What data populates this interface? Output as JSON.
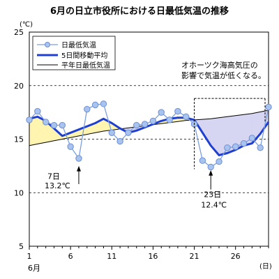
{
  "chart_data": {
    "type": "line",
    "title": "6月の日立市役所における日最低気温の推移",
    "ylabel": "(℃)",
    "xlabel": "(日)",
    "x_month_label": "6月",
    "ylim": [
      5,
      25
    ],
    "yticks": [
      5,
      10,
      15,
      20,
      25
    ],
    "xlim": [
      1,
      30
    ],
    "xticks": [
      1,
      6,
      11,
      16,
      21,
      26
    ],
    "grid": "horizontal-dashed",
    "legend_position": "top-left",
    "x": [
      1,
      2,
      3,
      4,
      5,
      6,
      7,
      8,
      9,
      10,
      11,
      12,
      13,
      14,
      15,
      16,
      17,
      18,
      19,
      20,
      21,
      22,
      23,
      24,
      25,
      26,
      27,
      28,
      29,
      30
    ],
    "series": [
      {
        "name": "日最低気温",
        "color": "#7b9ee0",
        "style": "line-with-circle-markers",
        "values": [
          16.8,
          17.6,
          16.6,
          16.3,
          16.3,
          14.3,
          13.2,
          17.8,
          18.2,
          18.3,
          15.6,
          14.8,
          15.6,
          16.3,
          16.4,
          16.7,
          17.5,
          16.8,
          17.6,
          17.1,
          16.4,
          13.0,
          12.4,
          12.9,
          14.2,
          14.3,
          14.6,
          15.1,
          14.2,
          18.0
        ]
      },
      {
        "name": "5日間移動平均",
        "color": "#1f3fd1",
        "style": "thick-line",
        "values": [
          16.9,
          17.1,
          16.7,
          16.0,
          15.3,
          15.6,
          15.9,
          16.2,
          16.5,
          16.9,
          16.5,
          16.0,
          15.6,
          15.8,
          16.1,
          16.4,
          16.7,
          16.9,
          17.0,
          17.0,
          16.8,
          15.6,
          14.4,
          13.5,
          13.7,
          14.0,
          14.4,
          14.6,
          15.5,
          16.6
        ]
      },
      {
        "name": "平年日最低気温",
        "color": "#000000",
        "style": "thin-line",
        "values": [
          14.4,
          14.55,
          14.7,
          14.85,
          15.0,
          15.15,
          15.3,
          15.45,
          15.6,
          15.75,
          15.85,
          15.95,
          16.05,
          16.15,
          16.25,
          16.35,
          16.45,
          16.55,
          16.65,
          16.75,
          16.8,
          16.85,
          16.9,
          17.0,
          17.1,
          17.2,
          17.3,
          17.4,
          17.55,
          17.7
        ]
      }
    ],
    "annotations": [
      {
        "id": "day7",
        "line1": "7日",
        "line2": "13.2℃",
        "x": 7
      },
      {
        "id": "day23",
        "line1": "23日",
        "line2": "12.4℃",
        "x": 23
      },
      {
        "id": "okhotsk",
        "line1": "オホーツク海高気圧の",
        "line2": "影響で気温が低くなる。"
      }
    ],
    "above_normal_fill": "#fff4b0",
    "below_normal_fill": "#d6d6f2",
    "bracket_x_range": [
      21,
      30
    ]
  }
}
